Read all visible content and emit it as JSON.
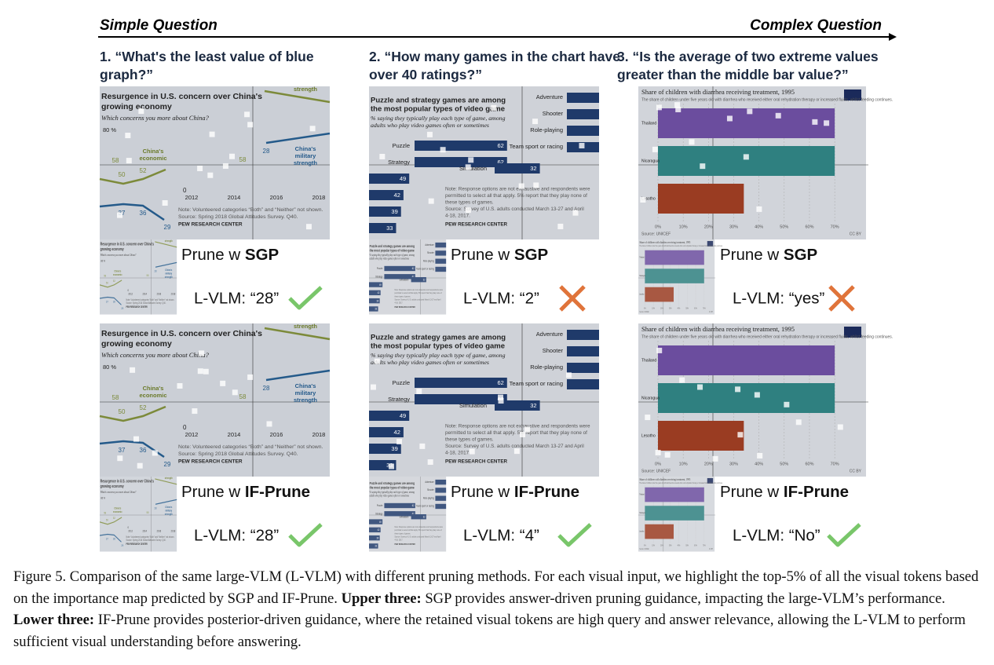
{
  "header": {
    "left": "Simple Question",
    "right": "Complex Question"
  },
  "columns": [
    {
      "question": "1. “What's the least value of blue graph?”",
      "chart": {
        "title_lines": [
          "Resurgence in U.S. concern over China's",
          "growing economy"
        ],
        "subtitle": "Which concerns you more about China?",
        "axis_top": "80 %",
        "axis_zero": "0",
        "years": [
          "2012",
          "2014",
          "2016",
          "2018"
        ],
        "economic_label": [
          "China's",
          "economic"
        ],
        "military_label": [
          "China's",
          "military",
          "strength"
        ],
        "top_label": "strength",
        "point_labels": [
          "58",
          "50",
          "52",
          "37",
          "36",
          "29",
          "28",
          "58"
        ],
        "notes": [
          "Note: Volunteered categories “Both” and “Neither” not shown.",
          "Source: Spring 2018 Global Attitudes Survey. Q40."
        ],
        "source": "PEW RESEARCH CENTER"
      },
      "rows": [
        {
          "method_prefix": "Prune w ",
          "method": "SGP",
          "answer": "L-VLM: “28”",
          "verdict": "correct"
        },
        {
          "method_prefix": "Prune w ",
          "method": "IF-Prune",
          "answer": "L-VLM: “28”",
          "verdict": "correct"
        }
      ]
    },
    {
      "question": "2. “How many games in the chart have over 40 ratings?”",
      "chart": {
        "title_lines": [
          "Puzzle and strategy games are among",
          "the most popular types of video game"
        ],
        "subtitle_lines": [
          "% saying they typically play each type of game, among",
          "adults who play video games often or sometimes"
        ],
        "left_bars": [
          {
            "label": "Puzzle",
            "value": 62
          },
          {
            "label": "Strategy",
            "value": 62
          },
          {
            "value": 49
          },
          {
            "value": 42
          },
          {
            "value": 39
          },
          {
            "value": 33
          }
        ],
        "right_bars": [
          {
            "label": "Adventure"
          },
          {
            "label": "Shooter"
          },
          {
            "label": "Role-playing"
          },
          {
            "label": "Team sport or racing"
          },
          {
            "label": "Simulation",
            "value": 32
          }
        ],
        "notes": [
          "Note: Response options are not exhaustive and respondents were",
          "permitted to select all that apply. 5% report that they play none of",
          "these types of games.",
          "Source: Survey of U.S. adults conducted March 13-27 and April",
          "4-18, 2017."
        ],
        "source": "PEW RESEARCH CENTER"
      },
      "rows": [
        {
          "method_prefix": "Prune w ",
          "method": "SGP",
          "answer": "L-VLM: “2”",
          "verdict": "wrong"
        },
        {
          "method_prefix": "Prune w ",
          "method": "IF-Prune",
          "answer": "L-VLM: “4”",
          "verdict": "correct"
        }
      ]
    },
    {
      "question": "3. “Is the average of two extreme values greater than the middle bar value?”",
      "chart": {
        "title": "Share of children with diarrhea receiving treatment, 1995",
        "subtitle": "The share of children under five years old with diarrhea who received either oral rehydration therapy or increased fluids, whilst feeding continues.",
        "bars": [
          {
            "label": "Thailand",
            "value": 70,
            "color": "#6b4d9e"
          },
          {
            "label": "Nicaragua",
            "value": 70,
            "color": "#2f8080"
          },
          {
            "label": "Lesotho",
            "value": 34,
            "color": "#9a3c22"
          }
        ],
        "xlim": [
          0,
          74
        ],
        "xticks": [
          {
            "value": 0,
            "label": "0%"
          },
          {
            "value": 10,
            "label": "10%"
          },
          {
            "value": 20,
            "label": "20%"
          },
          {
            "value": 30,
            "label": "30%"
          },
          {
            "value": 40,
            "label": "40%"
          },
          {
            "value": 50,
            "label": "50%"
          },
          {
            "value": 60,
            "label": "60%"
          },
          {
            "value": 70,
            "label": "70%"
          }
        ],
        "source": "Source: UNICEF",
        "license": "CC BY"
      },
      "rows": [
        {
          "method_prefix": "Prune w ",
          "method": "SGP",
          "answer": "L-VLM: “yes”",
          "verdict": "wrong"
        },
        {
          "method_prefix": "Prune w ",
          "method": "IF-Prune",
          "answer": "L-VLM: “No”",
          "verdict": "correct"
        }
      ]
    }
  ],
  "caption": {
    "segments": [
      {
        "text": "Figure 5. Comparison of the same large-VLM (L-VLM) with different pruning methods. For each visual input, we highlight the top-5% of all the visual tokens based on the importance map predicted by SGP and IF-Prune. ",
        "bold": false
      },
      {
        "text": "Upper three:",
        "bold": true
      },
      {
        "text": " SGP provides answer-driven pruning guidance, impacting the large-VLM’s performance. ",
        "bold": false
      },
      {
        "text": "Lower three:",
        "bold": true
      },
      {
        "text": " IF-Prune provides posterior-driven guidance, where the retained visual tokens are high query and answer relevance, allowing the L-VLM to perform sufficient visual understanding before answering.",
        "bold": false
      }
    ]
  }
}
